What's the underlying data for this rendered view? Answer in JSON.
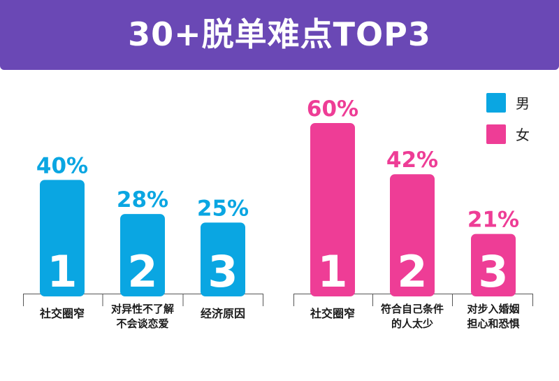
{
  "header": {
    "title": "30+脱单难点TOP3"
  },
  "legend": [
    {
      "label": "男",
      "color": "#0aa6e2"
    },
    {
      "label": "女",
      "color": "#ee3d96"
    }
  ],
  "chart_data": [
    {
      "type": "bar",
      "series": [
        {
          "name": "男",
          "color": "#0aa6e2",
          "categories": [
            "社交圈窄",
            "对异性不了解\n不会谈恋爱",
            "经济原因"
          ],
          "values": [
            40,
            28,
            25
          ],
          "value_labels": [
            "40%",
            "28%",
            "25%"
          ],
          "ranks": [
            "1",
            "2",
            "3"
          ]
        }
      ]
    },
    {
      "type": "bar",
      "series": [
        {
          "name": "女",
          "color": "#ee3d96",
          "categories": [
            "社交圈窄",
            "符合自己条件\n的人太少",
            "对步入婚姻\n担心和恐惧"
          ],
          "values": [
            60,
            42,
            21
          ],
          "value_labels": [
            "60%",
            "42%",
            "21%"
          ],
          "ranks": [
            "1",
            "2",
            "3"
          ]
        }
      ]
    }
  ]
}
